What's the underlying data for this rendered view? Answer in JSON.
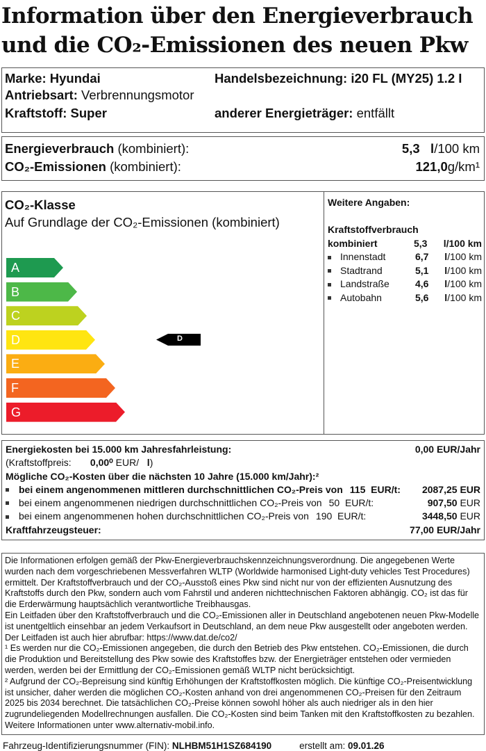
{
  "title": {
    "line1": "Information über den Energieverbrauch",
    "line2": "und die CO₂-Emissionen des neuen Pkw"
  },
  "vehicle": {
    "marke_label": "Marke:",
    "marke": "Hyundai",
    "handel_label": "Handelsbezeichnung:",
    "handel": "i20 FL (MY25) 1.2 I",
    "antrieb_label": "Antriebsart:",
    "antrieb": "Verbrennungsmotor",
    "kraftstoff_label": "Kraftstoff:",
    "kraftstoff": "Super",
    "andere_label": "anderer Energieträger:",
    "andere": "entfällt"
  },
  "consumption": {
    "energie_label": "Energieverbrauch",
    "kombiniert": "(kombiniert):",
    "energie_value": "5,3",
    "energie_unit_l": "l",
    "energie_unit": "/100 km",
    "co2_label": "CO₂-Emissionen",
    "co2_value": "121,0",
    "co2_unit": "g/km¹"
  },
  "co2_class": {
    "title": "CO₂-Klasse",
    "subtitle": "Auf Grundlage der CO₂-Emissionen (kombiniert)",
    "classes": [
      {
        "label": "A",
        "color": "#1e9a50"
      },
      {
        "label": "B",
        "color": "#4db848"
      },
      {
        "label": "C",
        "color": "#bdd21f"
      },
      {
        "label": "D",
        "color": "#ffe511"
      },
      {
        "label": "E",
        "color": "#fbad12"
      },
      {
        "label": "F",
        "color": "#f36520"
      },
      {
        "label": "G",
        "color": "#ec1c2a"
      }
    ],
    "current": "D"
  },
  "weitere": {
    "title": "Weitere Angaben:",
    "heading": "Kraftstoffverbrauch",
    "combined_label": "kombiniert",
    "combined_value": "5,3",
    "combined_unit": "l/100 km",
    "items": [
      {
        "label": "Innenstadt",
        "value": "6,7",
        "unit_l": "l",
        "unit": "/100 km"
      },
      {
        "label": "Stadtrand",
        "value": "5,1",
        "unit_l": "l",
        "unit": "/100 km"
      },
      {
        "label": "Landstraße",
        "value": "4,6",
        "unit_l": "l",
        "unit": "/100 km"
      },
      {
        "label": "Autobahn",
        "value": "5,6",
        "unit_l": "l",
        "unit": "/100 km"
      }
    ]
  },
  "costs": {
    "energie_label": "Energiekosten bei 15.000 km Jahresfahrleistung:",
    "energie_value": "0,00 EUR/Jahr",
    "preis_label": "(Kraftstoffpreis:",
    "preis_value": "0,00⁰",
    "preis_unit": "EUR/",
    "preis_l": "l",
    "preis_close": ")",
    "co2_heading": "Mögliche CO₂-Kosten über die nächsten 10 Jahre (15.000 km/Jahr):²",
    "scenarios": [
      {
        "text": "bei einem angenommenen mittleren durchschnittlichen CO₂-Preis von",
        "price": "115",
        "unit": "EUR/t:",
        "value": "2087,25",
        "cur": "EUR"
      },
      {
        "text": "bei einem angenommenen niedrigen durchschnittlichen CO₂-Preis von",
        "price": "50",
        "unit": "EUR/t:",
        "value": "907,50",
        "cur": "EUR"
      },
      {
        "text": "bei einem angenommenen hohen durchschnittlichen CO₂-Preis von",
        "price": "190",
        "unit": "EUR/t:",
        "value": "3448,50",
        "cur": "EUR"
      }
    ],
    "steuer_label": "Kraftfahrzeugsteuer:",
    "steuer_value": "77,00 EUR/Jahr"
  },
  "notes": {
    "p1": "Die Informationen erfolgen gemäß der Pkw-Energieverbrauchskennzeichnungsverordnung. Die angegebenen Werte wurden nach dem vorgeschriebenen Messverfahren WLTP (Worldwide harmonised Light-duty vehicles Test Procedures) ermittelt. Der Kraftstoffverbrauch und der CO₂-Ausstoß eines Pkw sind nicht nur von der effizienten Ausnutzung des Kraftstoffs durch den Pkw, sondern auch vom Fahrstil und anderen nichttechnischen Faktoren abhängig. CO₂ ist das für die Erderwärmung hauptsächlich verantwortliche Treibhausgas.",
    "p2": "Ein Leitfaden über den Kraftstoffverbrauch und die CO₂-Emissionen aller in Deutschland angebotenen neuen Pkw-Modelle ist unentgeltlich einsehbar an jedem Verkaufsort in Deutschland, an dem neue Pkw ausgestellt oder angeboten werden. Der Leitfaden ist auch hier abrufbar:   https://www.dat.de/co2/",
    "p3": "¹ Es werden nur die CO₂-Emissionen angegeben, die durch den Betrieb des Pkw entstehen. CO₂-Emissionen, die durch die Produktion und Bereitstellung des Pkw sowie des Kraftstoffes bzw. der Energieträger entstehen oder vermieden werden, werden bei der Ermittlung der CO₂-Emissionen gemäß WLTP nicht berücksichtigt.",
    "p4": "² Aufgrund der CO₂-Bepreisung sind künftig Erhöhungen der Kraftstoffkosten möglich. Die künftige CO₂-Preisentwicklung ist unsicher, daher werden die möglichen CO₂-Kosten anhand von drei angenommenen CO₂-Preisen für den Zeitraum  2025 bis  2034   berechnet. Die tatsächlichen CO₂-Preise können sowohl höher als auch niedriger als in den hier zugrundeliegenden Modellrechnungen ausfallen. Die CO₂-Kosten sind beim Tanken mit den Kraftstoffkosten zu bezahlen. Weitere Informationen unter www.alternativ-mobil.info."
  },
  "footer": {
    "fin_label": "Fahrzeug-Identifizierungsnummer (FIN):",
    "fin": "NLHBM51H1SZ684190",
    "date_label": "erstellt am:",
    "date": "09.01.26"
  }
}
